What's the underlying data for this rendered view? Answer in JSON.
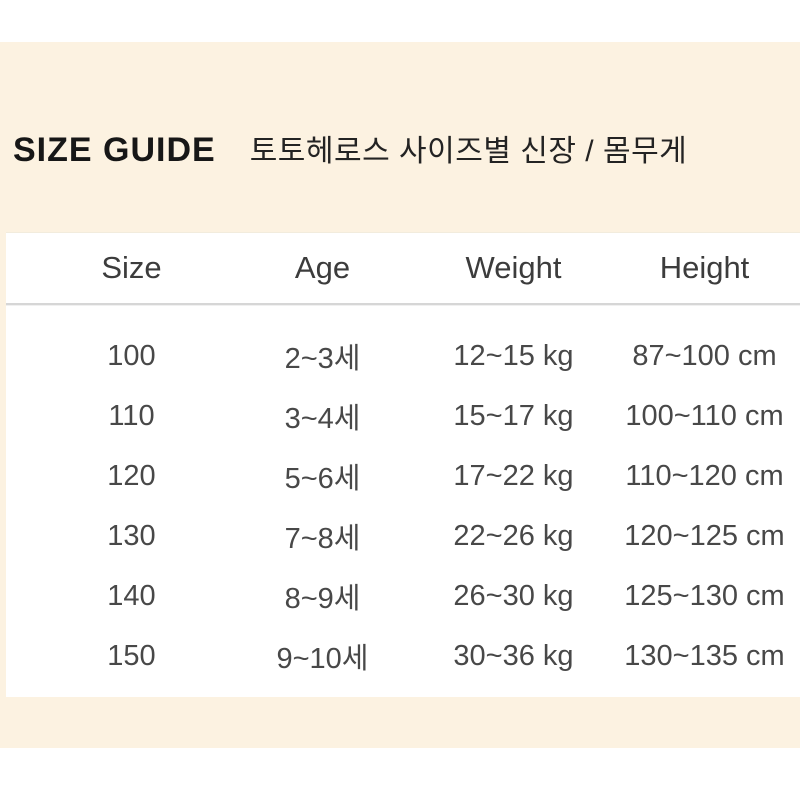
{
  "title": {
    "en": "SIZE GUIDE",
    "ko": "토토헤로스 사이즈별 신장 / 몸무게"
  },
  "size_table": {
    "headers": [
      "Size",
      "Age",
      "Weight",
      "Height"
    ],
    "rows": [
      [
        "100",
        "2~3세",
        "12~15 kg",
        "87~100 cm"
      ],
      [
        "110",
        "3~4세",
        "15~17 kg",
        "100~110 cm"
      ],
      [
        "120",
        "5~6세",
        "17~22 kg",
        "110~120 cm"
      ],
      [
        "130",
        "7~8세",
        "22~26 kg",
        "120~125 cm"
      ],
      [
        "140",
        "8~9세",
        "26~30 kg",
        "125~130 cm"
      ],
      [
        "150",
        "9~10세",
        "30~36 kg",
        "130~135 cm"
      ]
    ]
  },
  "colors": {
    "page_background": "#ffffff",
    "cream_band": "#fcf2e1",
    "panel_background": "#ffffff",
    "title_text": "#171717",
    "header_text": "#3c3c3c",
    "cell_text": "#484848",
    "header_separator": "#d6d6d6"
  }
}
